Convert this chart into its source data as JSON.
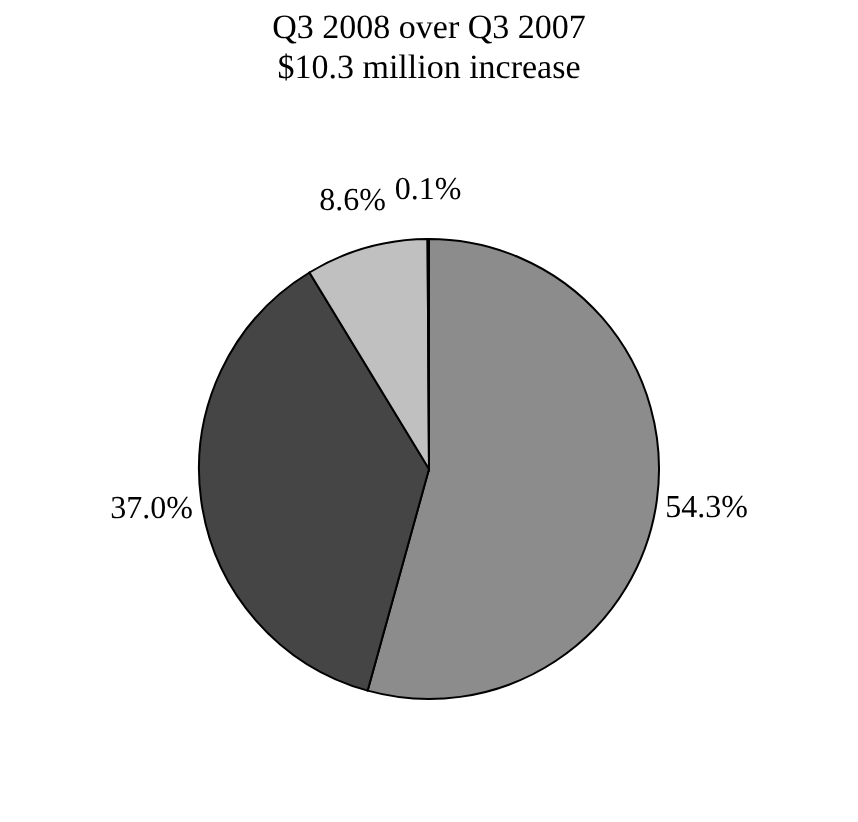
{
  "chart_data": {
    "type": "pie",
    "title": "Q3 2008 over Q3 2007",
    "subtitle": "$10.3 million increase",
    "categories": [
      null,
      null,
      null,
      null
    ],
    "values": [
      54.3,
      37.0,
      8.6,
      0.1
    ],
    "colors": [
      "#8c8c8c",
      "#454545",
      "#c0c0c0",
      "#ffffff"
    ],
    "value_labels": [
      "54.3%",
      "37.0%",
      "8.6%",
      "0.1%"
    ]
  }
}
